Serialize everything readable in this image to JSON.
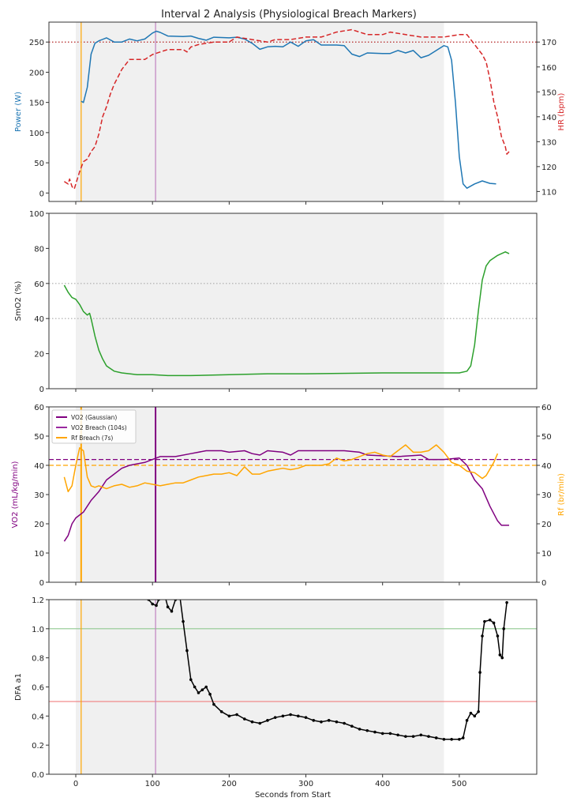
{
  "title": "Interval 2 Analysis (Physiological Breach Markers)",
  "colors": {
    "power": "#1f77b4",
    "hr": "#d62728",
    "smo2": "#2ca02c",
    "vo2": "#800080",
    "rf": "#ffa500",
    "dfa": "#000000",
    "shade": "#f0f0f0"
  },
  "chart_data": [
    {
      "type": "line",
      "xlim": [
        -35,
        601
      ],
      "shaded_interval": [
        0,
        480
      ],
      "vlines": [
        {
          "x": 7,
          "color": "#ffa500"
        },
        {
          "x": 104,
          "color": "#c080c0"
        }
      ],
      "ylabel": "Power (W)",
      "ylim": [
        -14,
        283
      ],
      "yticks": [
        0,
        50,
        100,
        150,
        200,
        250
      ],
      "y2label": "HR (bpm)",
      "y2lim": [
        106,
        178
      ],
      "y2ticks": [
        110,
        120,
        130,
        140,
        150,
        160,
        170
      ],
      "hlines_y2": [
        {
          "y": 170,
          "color": "#b22222",
          "style": "dotted"
        }
      ],
      "series": [
        {
          "axis": "y",
          "color": "#1f77b4",
          "style": "solid",
          "x": [
            7,
            10,
            15,
            20,
            25,
            30,
            40,
            50,
            60,
            70,
            80,
            90,
            100,
            105,
            110,
            120,
            140,
            150,
            160,
            170,
            180,
            200,
            210,
            220,
            230,
            240,
            250,
            260,
            270,
            280,
            290,
            300,
            310,
            320,
            340,
            350,
            360,
            370,
            380,
            400,
            410,
            420,
            430,
            440,
            450,
            460,
            470,
            480,
            485,
            490,
            495,
            500,
            505,
            510,
            520,
            530,
            540,
            548
          ],
          "y": [
            152,
            150,
            175,
            230,
            248,
            252,
            257,
            250,
            250,
            255,
            252,
            255,
            265,
            268,
            266,
            260,
            259,
            260,
            256,
            253,
            258,
            257,
            258,
            255,
            248,
            238,
            242,
            243,
            242,
            250,
            243,
            252,
            254,
            245,
            245,
            244,
            230,
            226,
            232,
            231,
            231,
            236,
            232,
            236,
            224,
            228,
            236,
            244,
            242,
            220,
            150,
            60,
            15,
            8,
            15,
            20,
            16,
            15
          ]
        },
        {
          "axis": "y2",
          "color": "#d62728",
          "style": "dashed",
          "x": [
            -15,
            -10,
            -8,
            -5,
            -2,
            0,
            5,
            10,
            15,
            20,
            25,
            30,
            35,
            40,
            45,
            50,
            55,
            60,
            65,
            70,
            80,
            90,
            100,
            110,
            120,
            140,
            145,
            150,
            160,
            180,
            200,
            210,
            230,
            250,
            260,
            280,
            300,
            320,
            330,
            340,
            360,
            380,
            400,
            410,
            430,
            450,
            480,
            500,
            510,
            520,
            530,
            535,
            540,
            545,
            550,
            555,
            560,
            562,
            565
          ],
          "y": [
            114,
            113,
            115,
            112,
            111,
            113,
            118,
            122,
            123,
            126,
            128,
            133,
            140,
            144,
            149,
            153,
            156,
            159,
            161,
            163,
            163,
            163,
            165,
            166,
            167,
            167,
            166,
            168,
            169,
            170,
            170,
            172,
            171,
            170,
            171,
            171,
            172,
            172,
            173,
            174,
            175,
            173,
            173,
            174,
            173,
            172,
            172,
            173,
            173,
            169,
            165,
            162,
            155,
            146,
            140,
            132,
            128,
            125,
            126
          ]
        }
      ]
    },
    {
      "type": "line",
      "xlim": [
        -35,
        601
      ],
      "shaded_interval": [
        0,
        480
      ],
      "ylabel": "SmO2 (%)",
      "ylim": [
        0,
        100
      ],
      "yticks": [
        0,
        20,
        40,
        60,
        80,
        100
      ],
      "hlines": [
        {
          "y": 60,
          "color": "#aaaaaa",
          "style": "dotted"
        },
        {
          "y": 40,
          "color": "#aaaaaa",
          "style": "dotted"
        }
      ],
      "series": [
        {
          "axis": "y",
          "color": "#2ca02c",
          "style": "solid",
          "x": [
            -15,
            -10,
            -5,
            0,
            5,
            10,
            15,
            18,
            20,
            25,
            30,
            35,
            40,
            50,
            60,
            80,
            100,
            120,
            150,
            200,
            250,
            300,
            400,
            450,
            480,
            500,
            510,
            515,
            520,
            525,
            530,
            535,
            540,
            550,
            560,
            565
          ],
          "y": [
            59,
            55,
            52,
            51,
            48,
            44,
            42,
            43,
            40,
            30,
            22,
            17,
            13,
            10,
            9,
            8,
            8,
            7.5,
            7.5,
            8,
            8.5,
            8.5,
            9,
            9,
            9,
            9,
            10,
            13,
            25,
            45,
            62,
            70,
            73,
            76,
            78,
            77
          ]
        }
      ]
    },
    {
      "type": "line",
      "xlim": [
        -35,
        601
      ],
      "shaded_interval": [
        0,
        480
      ],
      "vlines": [
        {
          "x": 7,
          "color": "#ffa500",
          "width": 2
        },
        {
          "x": 104,
          "color": "#800080",
          "width": 2
        }
      ],
      "ylabel": "VO2 (mL/kg/min)",
      "ylim": [
        0,
        60
      ],
      "yticks": [
        0,
        10,
        20,
        30,
        40,
        50,
        60
      ],
      "y2label": "Rf (br/min)",
      "y2lim": [
        0,
        60
      ],
      "y2ticks": [
        0,
        10,
        20,
        30,
        40,
        50,
        60
      ],
      "hlines": [
        {
          "y": 42,
          "color": "#800080",
          "style": "dashed"
        }
      ],
      "hlines_y2": [
        {
          "y": 40,
          "color": "#ffa500",
          "style": "dashed"
        }
      ],
      "legend": {
        "placement": "upper-left",
        "entries": [
          {
            "label": "VO2 (Gaussian)",
            "color": "#800080"
          },
          {
            "label": "VO2 Breach (104s)",
            "color": "#9a2aa0"
          },
          {
            "label": "Rf Breach (7s)",
            "color": "#ffa500"
          }
        ]
      },
      "series": [
        {
          "axis": "y",
          "name": "VO2 (Gaussian)",
          "color": "#800080",
          "style": "solid",
          "x": [
            -15,
            -10,
            -5,
            0,
            10,
            20,
            30,
            40,
            50,
            60,
            70,
            80,
            90,
            100,
            110,
            130,
            150,
            170,
            190,
            200,
            220,
            230,
            240,
            250,
            270,
            280,
            290,
            330,
            350,
            370,
            380,
            420,
            450,
            460,
            480,
            500,
            510,
            520,
            530,
            540,
            550,
            555,
            565
          ],
          "y": [
            14,
            16,
            20,
            22,
            24,
            28,
            31,
            35,
            37,
            39,
            40,
            40.5,
            41,
            42,
            43,
            43,
            44,
            45,
            45,
            44.5,
            45,
            44,
            43.5,
            45,
            44.5,
            43.5,
            45,
            45,
            45,
            44.5,
            43.5,
            43,
            43.5,
            42,
            42,
            42.5,
            40,
            35,
            32,
            26,
            21,
            19.5,
            19.5
          ]
        },
        {
          "axis": "y2",
          "color": "#ffa500",
          "style": "solid",
          "x": [
            -15,
            -10,
            -5,
            0,
            5,
            10,
            15,
            20,
            25,
            30,
            40,
            50,
            60,
            70,
            80,
            90,
            100,
            110,
            120,
            130,
            140,
            150,
            160,
            170,
            180,
            190,
            200,
            210,
            220,
            230,
            240,
            250,
            260,
            270,
            280,
            290,
            300,
            320,
            330,
            340,
            350,
            360,
            370,
            380,
            390,
            400,
            410,
            420,
            430,
            440,
            450,
            460,
            470,
            480,
            490,
            500,
            510,
            520,
            530,
            535,
            545,
            550
          ],
          "y": [
            36,
            31,
            33,
            40,
            46,
            45,
            36,
            33,
            32.5,
            33,
            32,
            33,
            33.5,
            32.5,
            33,
            34,
            33.5,
            33,
            33.5,
            34,
            34,
            35,
            36,
            36.5,
            37,
            37,
            37.5,
            36.5,
            39.5,
            37,
            37,
            38,
            38.5,
            39,
            38.5,
            39,
            40,
            40,
            40.5,
            42.5,
            41.5,
            42,
            43,
            44,
            44.5,
            43.5,
            43,
            45,
            47,
            44.5,
            44.5,
            45,
            47,
            44.5,
            41,
            40,
            38,
            37.5,
            35.5,
            36.5,
            41,
            44
          ]
        }
      ]
    },
    {
      "type": "line",
      "xlim": [
        -35,
        601
      ],
      "shaded_interval": [
        0,
        480
      ],
      "vlines": [
        {
          "x": 7,
          "color": "#ffa500"
        },
        {
          "x": 104,
          "color": "#c080c0"
        }
      ],
      "xlabel": "Seconds from Start",
      "xticks": [
        0,
        100,
        200,
        300,
        400,
        500
      ],
      "ylabel": "DFA a1",
      "ylim": [
        0,
        1.2
      ],
      "yticks": [
        0.0,
        0.2,
        0.4,
        0.6,
        0.8,
        1.0,
        1.2
      ],
      "hlines": [
        {
          "y": 1.0,
          "color": "#8fc88f",
          "style": "solid"
        },
        {
          "y": 0.5,
          "color": "#f08080",
          "style": "solid"
        }
      ],
      "series": [
        {
          "axis": "y",
          "color": "#000000",
          "style": "solid",
          "markers": true,
          "x": [
            95,
            100,
            105,
            108,
            115,
            120,
            125,
            130,
            135,
            140,
            145,
            150,
            155,
            160,
            165,
            170,
            175,
            180,
            190,
            200,
            210,
            220,
            230,
            240,
            250,
            260,
            270,
            280,
            290,
            300,
            310,
            320,
            330,
            340,
            350,
            360,
            370,
            380,
            390,
            400,
            410,
            420,
            430,
            440,
            450,
            460,
            470,
            480,
            490,
            500,
            505,
            510,
            515,
            520,
            525,
            527,
            530,
            533,
            540,
            545,
            550,
            553,
            556,
            558,
            562
          ],
          "y": [
            1.2,
            1.17,
            1.16,
            1.2,
            1.25,
            1.15,
            1.12,
            1.2,
            1.25,
            1.05,
            0.85,
            0.65,
            0.6,
            0.56,
            0.58,
            0.6,
            0.55,
            0.48,
            0.43,
            0.4,
            0.41,
            0.38,
            0.36,
            0.35,
            0.37,
            0.39,
            0.4,
            0.41,
            0.4,
            0.39,
            0.37,
            0.36,
            0.37,
            0.36,
            0.35,
            0.33,
            0.31,
            0.3,
            0.29,
            0.28,
            0.28,
            0.27,
            0.26,
            0.26,
            0.27,
            0.26,
            0.25,
            0.24,
            0.24,
            0.24,
            0.25,
            0.37,
            0.42,
            0.4,
            0.43,
            0.7,
            0.95,
            1.05,
            1.06,
            1.04,
            0.95,
            0.82,
            0.8,
            1.0,
            1.18
          ]
        }
      ]
    }
  ]
}
